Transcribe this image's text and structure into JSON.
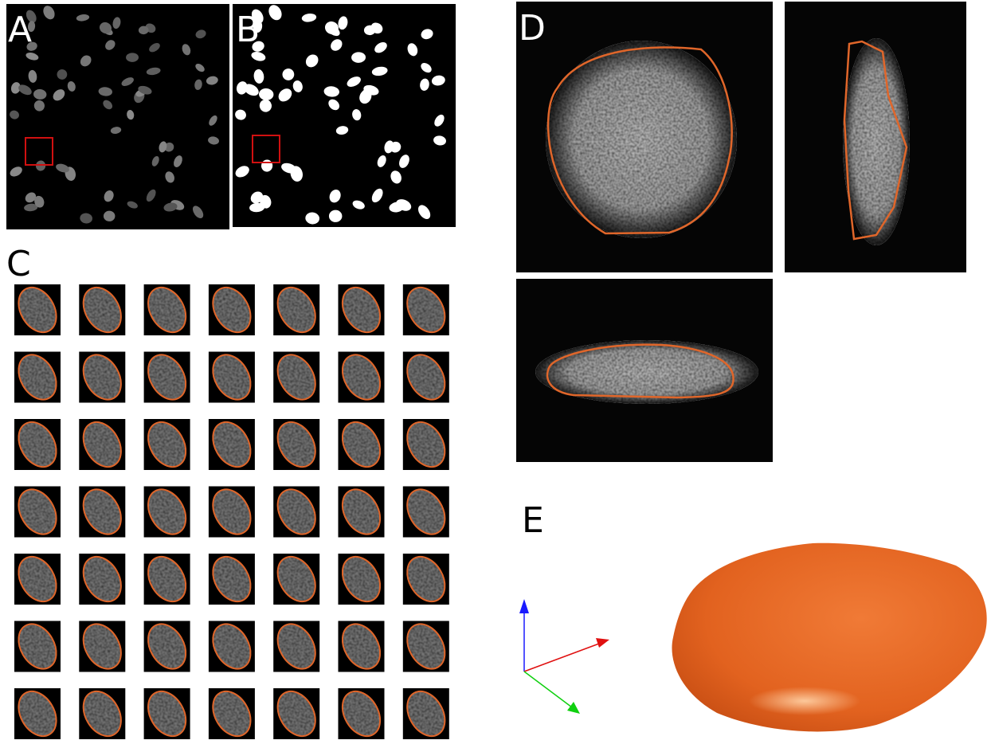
{
  "panels": [
    {
      "label": "A"
    },
    {
      "label": "B"
    },
    {
      "label": "C"
    },
    {
      "label": "D"
    },
    {
      "label": "E"
    }
  ]
}
